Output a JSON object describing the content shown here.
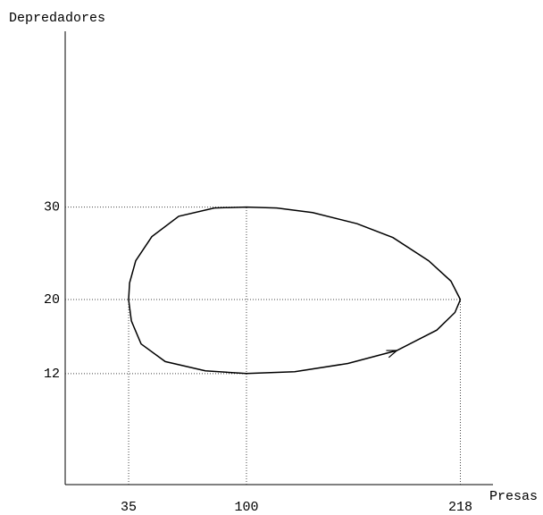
{
  "chart_data": {
    "type": "line",
    "x_label": "Presas",
    "y_label": "Depredadores",
    "xlim": [
      0,
      236
    ],
    "ylim": [
      0,
      49
    ],
    "xticks": [
      35,
      100,
      218
    ],
    "yticks": [
      12,
      20,
      30
    ],
    "series": [
      {
        "color": "#000000",
        "x": [
          218,
          212.8,
          200.5,
          180.8,
          161,
          136.5,
          116.7,
          100,
          82.3,
          62.6,
          47.8,
          38.9,
          35.5,
          35,
          36.5,
          41.9,
          55.2,
          77.3,
          100,
          126.6,
          156,
          183,
          205,
          215,
          218
        ],
        "values": [
          20,
          22,
          24.2,
          26.7,
          28.2,
          29.4,
          29.9,
          30,
          29.9,
          29,
          26.8,
          24.2,
          21.8,
          20,
          17.7,
          15.2,
          13.3,
          12.3,
          12,
          12.2,
          13.1,
          14.5,
          16.7,
          18.6,
          20
        ]
      }
    ]
  }
}
